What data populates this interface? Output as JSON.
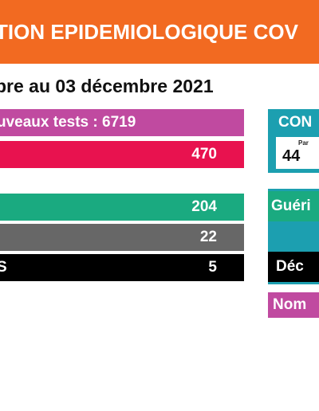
{
  "header": {
    "title": "TION EPIDEMIOLOGIQUE COV"
  },
  "date_line": "bre au 03 décembre 2021",
  "bars": {
    "tests": {
      "label": "uveaux tests : 6719"
    },
    "positive": {
      "value": "470"
    },
    "green": {
      "value": "204"
    },
    "gray": {
      "value": "22"
    },
    "black": {
      "label": "S",
      "value": "5"
    }
  },
  "panel": {
    "title": "CON",
    "card_small": "Par",
    "card_num": "44",
    "gueri": "Guéri",
    "deces": "Déc",
    "nom": "Nom"
  },
  "colors": {
    "header": "#f26a21",
    "tests": "#c04aa0",
    "positive": "#e8124f",
    "green": "#1aaa80",
    "gray": "#676767",
    "black": "#000000",
    "teal": "#1c9fb0"
  }
}
